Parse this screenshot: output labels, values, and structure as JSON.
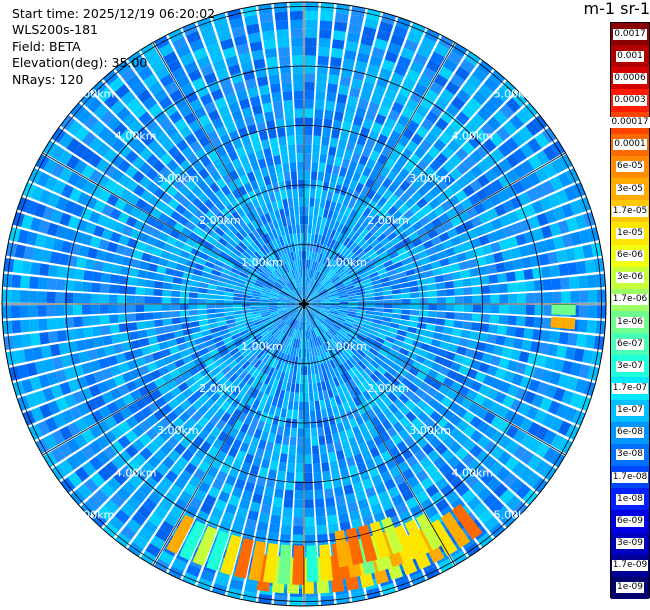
{
  "info": {
    "start_time": "Start time: 2025/12/19 06:20:02",
    "instrument": "WLS200s-181",
    "field": "Field: BETA",
    "elevation": "Elevation(deg): 35.00",
    "nrays": "NRays: 120"
  },
  "range_labels": [
    "1.00km",
    "2.00km",
    "3.00km",
    "4.00km",
    "5.00km"
  ],
  "colorbar": {
    "unit": "m-1 sr-1",
    "ticks": [
      "0.0017",
      "0.001",
      "0.0006",
      "0.0003",
      "0.00017",
      "0.0001",
      "6e-05",
      "3e-05",
      "1.7e-05",
      "1e-05",
      "6e-06",
      "3e-06",
      "1.7e-06",
      "1e-06",
      "6e-07",
      "3e-07",
      "1.7e-07",
      "1e-07",
      "6e-08",
      "3e-08",
      "1.7e-08",
      "1e-08",
      "6e-09",
      "3e-09",
      "1.7e-09",
      "1e-09"
    ],
    "colors": [
      "#8b0000",
      "#b00000",
      "#d50000",
      "#ff1a00",
      "#ff4400",
      "#ff6a00",
      "#ff8c00",
      "#ffab00",
      "#ffc800",
      "#ffe600",
      "#f0ff10",
      "#c8ff3c",
      "#9cff64",
      "#70ff8c",
      "#48ffb4",
      "#20ffdc",
      "#00e8ff",
      "#00c0ff",
      "#0096ff",
      "#0070ff",
      "#0048ff",
      "#0020ff",
      "#0000e6",
      "#0000c0",
      "#000096",
      "#00006e"
    ]
  }
}
